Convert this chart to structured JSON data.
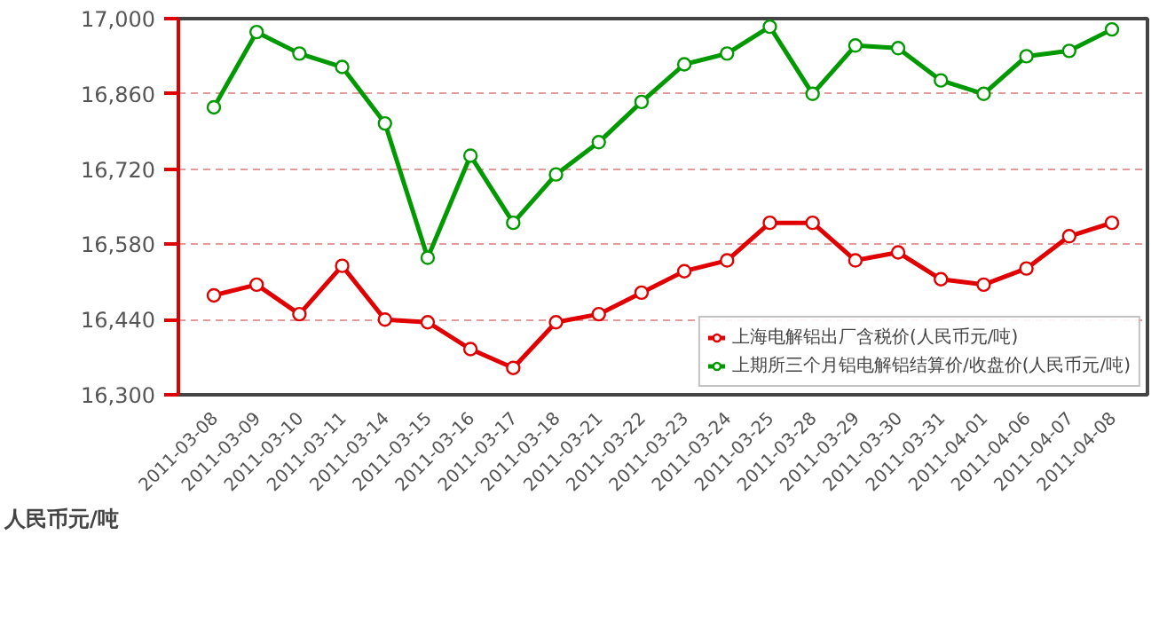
{
  "chart_data": {
    "type": "line",
    "ylabel": "人民币元/吨",
    "categories": [
      "2011-03-08",
      "2011-03-09",
      "2011-03-10",
      "2011-03-11",
      "2011-03-14",
      "2011-03-15",
      "2011-03-16",
      "2011-03-17",
      "2011-03-18",
      "2011-03-21",
      "2011-03-22",
      "2011-03-23",
      "2011-03-24",
      "2011-03-25",
      "2011-03-28",
      "2011-03-29",
      "2011-03-30",
      "2011-03-31",
      "2011-04-01",
      "2011-04-06",
      "2011-04-07",
      "2011-04-08"
    ],
    "series": [
      {
        "name": "上海电解铝出厂含税价(人民币元/吨)",
        "color": "#e00000",
        "values": [
          16485,
          16505,
          16450,
          16540,
          16440,
          16435,
          16385,
          16350,
          16435,
          16450,
          16490,
          16530,
          16550,
          16620,
          16620,
          16550,
          16565,
          16515,
          16505,
          16535,
          16595,
          16620
        ]
      },
      {
        "name": "上期所三个月铝电解铝结算价/收盘价(人民币元/吨)",
        "color": "#009900",
        "values": [
          16835,
          16975,
          16935,
          16910,
          16805,
          16555,
          16745,
          16620,
          16710,
          16770,
          16845,
          16915,
          16935,
          16985,
          16860,
          16950,
          16945,
          16885,
          16860,
          16930,
          16940,
          16980
        ]
      }
    ],
    "ylim": [
      16300,
      17000
    ],
    "yticks": [
      {
        "value": 16300,
        "label": "16,300"
      },
      {
        "value": 16440,
        "label": "16,440"
      },
      {
        "value": 16580,
        "label": "16,580"
      },
      {
        "value": 16720,
        "label": "16,720"
      },
      {
        "value": 16860,
        "label": "16,860"
      },
      {
        "value": 17000,
        "label": "17,000"
      }
    ],
    "grid": "y",
    "legend": "bottom right",
    "marker": "circle",
    "line_style": "solid"
  }
}
